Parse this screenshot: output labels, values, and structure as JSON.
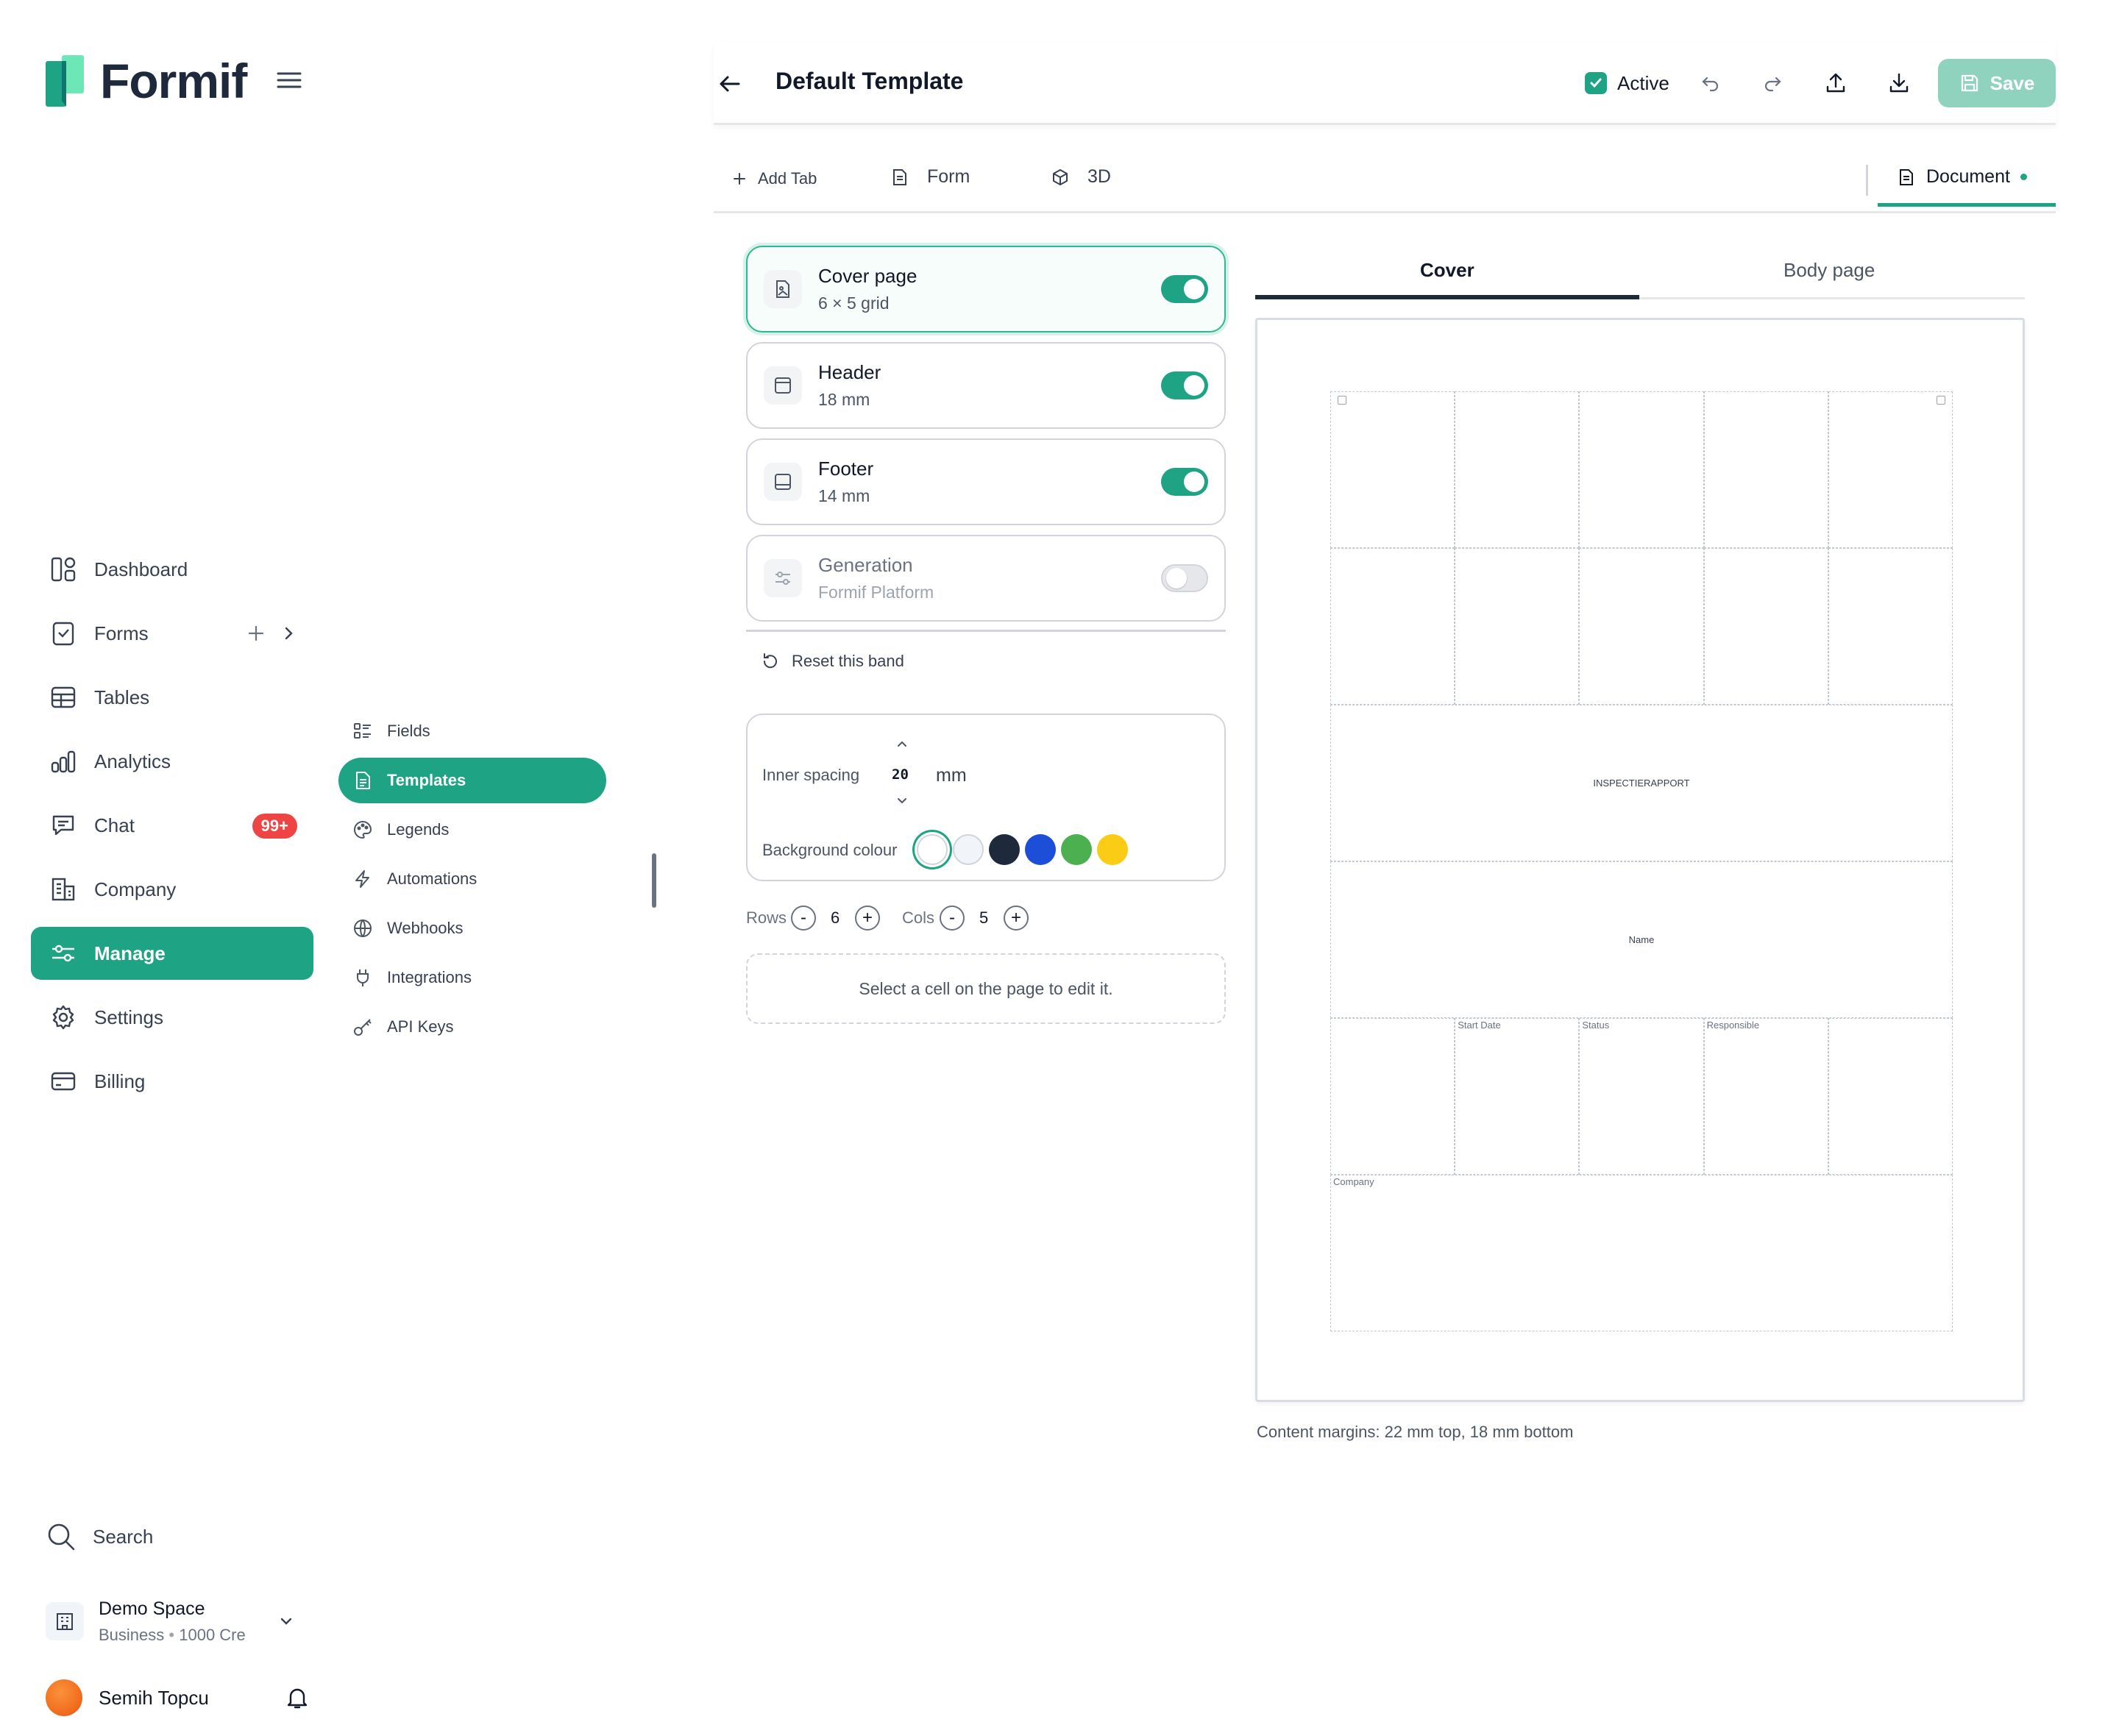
{
  "app": {
    "name": "Formif"
  },
  "sidebar": {
    "nav": [
      {
        "label": "Dashboard",
        "icon": "dashboard-icon"
      },
      {
        "label": "Forms",
        "icon": "forms-icon"
      },
      {
        "label": "Tables",
        "icon": "table-icon"
      },
      {
        "label": "Analytics",
        "icon": "analytics-icon"
      },
      {
        "label": "Chat",
        "icon": "chat-icon",
        "badge": "99+"
      },
      {
        "label": "Company",
        "icon": "company-icon"
      },
      {
        "label": "Manage",
        "icon": "sliders-icon",
        "active": true
      },
      {
        "label": "Settings",
        "icon": "gear-icon"
      },
      {
        "label": "Billing",
        "icon": "credit-card-icon"
      }
    ],
    "submenu": [
      {
        "label": "Fields",
        "icon": "list-icon"
      },
      {
        "label": "Templates",
        "icon": "document-icon",
        "active": true
      },
      {
        "label": "Legends",
        "icon": "palette-icon"
      },
      {
        "label": "Automations",
        "icon": "bolt-icon"
      },
      {
        "label": "Webhooks",
        "icon": "globe-icon"
      },
      {
        "label": "Integrations",
        "icon": "plug-icon"
      },
      {
        "label": "API Keys",
        "icon": "key-icon"
      }
    ],
    "search_label": "Search",
    "space": {
      "name": "Demo Space",
      "plan": "Business",
      "credits": "1000 Cre"
    },
    "user": {
      "name": "Semih Topcu"
    }
  },
  "topbar": {
    "title": "Default Template",
    "active_label": "Active",
    "save_label": "Save"
  },
  "tabs": {
    "add_tab": "Add Tab",
    "form": "Form",
    "three_d": "3D",
    "document": "Document"
  },
  "bands": [
    {
      "name": "Cover page",
      "detail": "6 × 5 grid",
      "enabled": true
    },
    {
      "name": "Header",
      "detail": "18 mm",
      "enabled": true
    },
    {
      "name": "Footer",
      "detail": "14 mm",
      "enabled": true
    },
    {
      "name": "Generation",
      "detail": "Formif Platform",
      "enabled": false
    }
  ],
  "reset_label": "Reset this band",
  "spacing": {
    "label": "Inner spacing",
    "value": "20",
    "unit": "mm",
    "background_label": "Background colour",
    "colors": [
      "#ffffff",
      "#f1f5f9",
      "#1e293b",
      "#1d4ed8",
      "#4caf50",
      "#facc15"
    ],
    "selected_color": "#ffffff"
  },
  "grid_controls": {
    "rows_label": "Rows",
    "rows": "6",
    "cols_label": "Cols",
    "cols": "5",
    "minus": "-",
    "plus": "+"
  },
  "hint": "Select a cell on the page to edit it.",
  "preview": {
    "tabs": [
      "Cover",
      "Body page"
    ],
    "active_tab": "Cover",
    "cells": {
      "title": "INSPECTIERAPPORT",
      "name": "Name",
      "start_date": "Start Date",
      "status": "Status",
      "responsible": "Responsible",
      "company": "Company"
    },
    "margins_note": "Content margins: 22 mm top, 18 mm bottom"
  },
  "colors": {
    "accent": "#1ea384",
    "badge": "#ef4444",
    "save_disabled": "#8fd3be"
  }
}
